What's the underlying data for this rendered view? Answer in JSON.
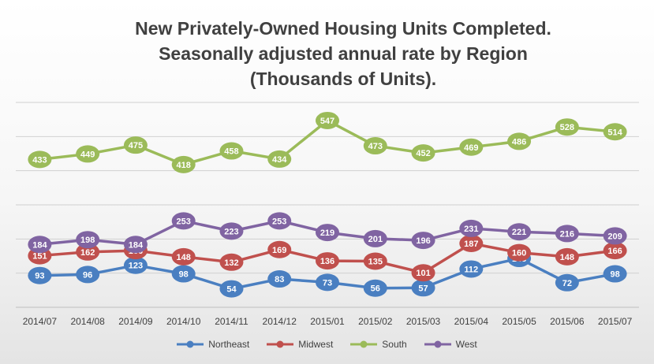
{
  "chart_data": {
    "type": "line",
    "title": "New Privately-Owned Housing Units Completed. Seasonally adjusted annual rate by Region (Thousands of Units).",
    "title_lines": [
      "New Privately-Owned Housing Units Completed.",
      "Seasonally adjusted annual rate by Region",
      "(Thousands of Units)."
    ],
    "categories": [
      "2014/07",
      "2014/08",
      "2014/09",
      "2014/10",
      "2014/11",
      "2014/12",
      "2015/01",
      "2015/02",
      "2015/03",
      "2015/04",
      "2015/05",
      "2015/06",
      "2015/07"
    ],
    "series": [
      {
        "name": "Northeast",
        "color": "#4a7fc1",
        "values": [
          93,
          96,
          123,
          98,
          54,
          83,
          73,
          56,
          57,
          112,
          143,
          72,
          98
        ]
      },
      {
        "name": "Midwest",
        "color": "#c0504d",
        "values": [
          151,
          162,
          166,
          148,
          132,
          169,
          136,
          135,
          101,
          187,
          160,
          148,
          166
        ]
      },
      {
        "name": "South",
        "color": "#9bbb59",
        "values": [
          433,
          449,
          475,
          418,
          458,
          434,
          547,
          473,
          452,
          469,
          486,
          528,
          514
        ]
      },
      {
        "name": "West",
        "color": "#8064a2",
        "values": [
          184,
          198,
          184,
          253,
          223,
          253,
          219,
          201,
          196,
          231,
          221,
          216,
          209
        ]
      }
    ],
    "xlabel": "",
    "ylabel": "",
    "ylim": [
      0,
      600
    ],
    "grid": true,
    "data_labels": true,
    "legend_position": "bottom"
  }
}
